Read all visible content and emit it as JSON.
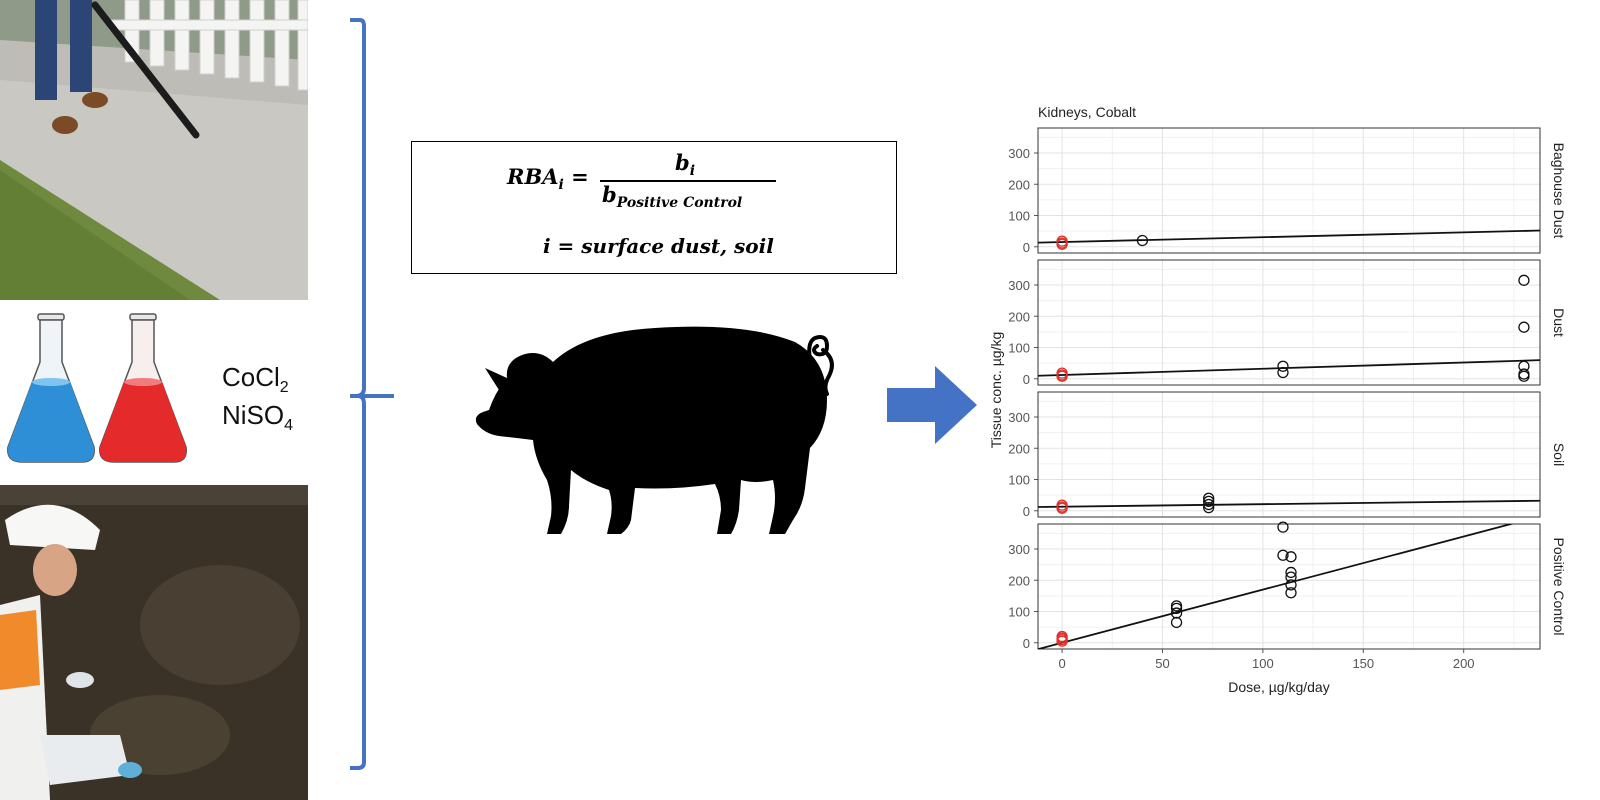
{
  "chemicals": {
    "cocl2": {
      "base": "CoCl",
      "sub": "2"
    },
    "niso4": {
      "base": "NiSO",
      "sub": "4"
    }
  },
  "formula": {
    "lhs": "RBA",
    "lhs_sub": "i",
    "equals": "=",
    "numerator": "b",
    "numerator_sub": "i",
    "denominator": "b",
    "denominator_sub": "Positive Control",
    "index_line": "i = surface dust, soil"
  },
  "colors": {
    "bracket": "#4472c4",
    "arrow": "#4472c4",
    "control_points": "#e0302a",
    "flask_blue": "#2e8fd6",
    "flask_red": "#e42a2a"
  },
  "chart_data": {
    "type": "scatter",
    "title": "Kidneys, Cobalt",
    "xlabel": "Dose, µg/kg/day",
    "ylabel": "Tissue conc. µg/kg",
    "xlim": [
      -12,
      238
    ],
    "ylim": [
      -20,
      380
    ],
    "x_ticks": [
      0,
      50,
      100,
      150,
      200
    ],
    "y_ticks": [
      0,
      100,
      200,
      300
    ],
    "grid": true,
    "panels": [
      {
        "label": "Baghouse Dust",
        "control_points": [
          [
            0,
            8
          ],
          [
            0,
            12
          ],
          [
            0,
            18
          ]
        ],
        "points": [
          [
            40,
            20
          ]
        ],
        "fit": {
          "intercept": 15,
          "slope": 0.155
        }
      },
      {
        "label": "Dust",
        "control_points": [
          [
            0,
            8
          ],
          [
            0,
            12
          ],
          [
            0,
            18
          ]
        ],
        "points": [
          [
            110,
            20
          ],
          [
            110,
            40
          ],
          [
            230,
            8
          ],
          [
            230,
            15
          ],
          [
            230,
            40
          ],
          [
            230,
            165
          ],
          [
            230,
            315
          ]
        ],
        "fit": {
          "intercept": 12,
          "slope": 0.2
        }
      },
      {
        "label": "Soil",
        "control_points": [
          [
            0,
            8
          ],
          [
            0,
            12
          ],
          [
            0,
            18
          ]
        ],
        "points": [
          [
            73,
            10
          ],
          [
            73,
            20
          ],
          [
            73,
            30
          ],
          [
            73,
            40
          ]
        ],
        "fit": {
          "intercept": 13,
          "slope": 0.08
        }
      },
      {
        "label": "Positive Control",
        "control_points": [
          [
            0,
            5
          ],
          [
            0,
            10
          ],
          [
            0,
            15
          ],
          [
            0,
            20
          ]
        ],
        "points": [
          [
            57,
            65
          ],
          [
            57,
            95
          ],
          [
            57,
            110
          ],
          [
            57,
            118
          ],
          [
            110,
            280
          ],
          [
            110,
            370
          ],
          [
            114,
            160
          ],
          [
            114,
            185
          ],
          [
            114,
            210
          ],
          [
            114,
            225
          ],
          [
            114,
            275
          ]
        ],
        "fit": {
          "intercept": 0,
          "slope": 1.7
        }
      }
    ]
  }
}
